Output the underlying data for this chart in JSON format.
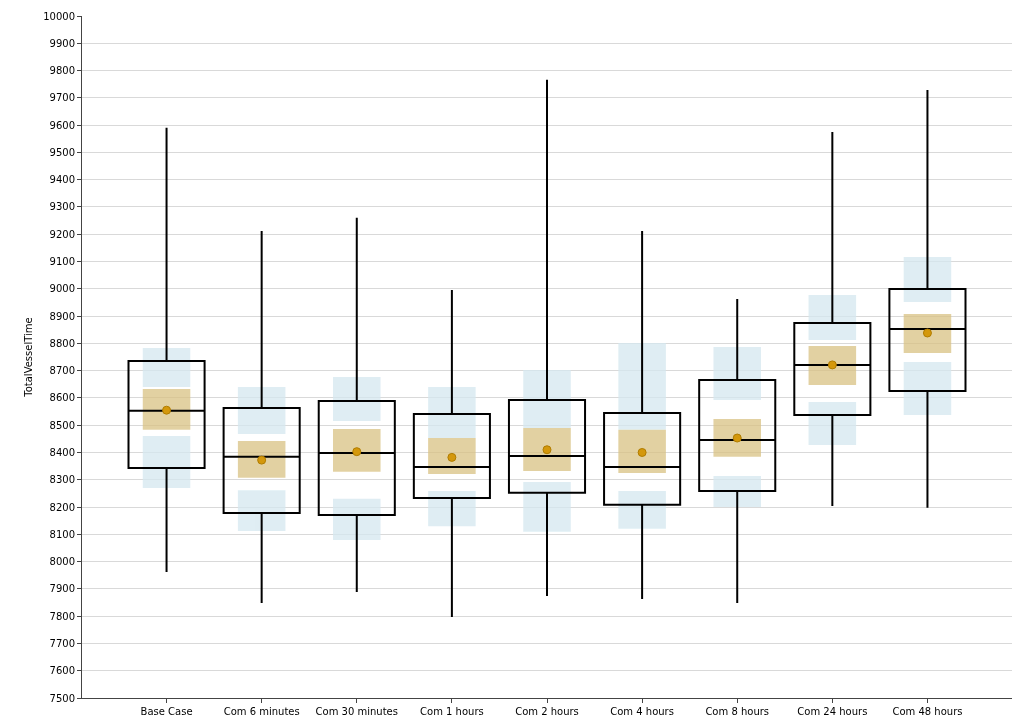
{
  "chart_data": {
    "type": "box",
    "ylabel": "TotalVesselTime",
    "categories": [
      "Base Case",
      "Com 6 minutes",
      "Com 30 minutes",
      "Com 1 hours",
      "Com 2 hours",
      "Com 4 hours",
      "Com 8 hours",
      "Com 24 hours",
      "Com 48 hours"
    ],
    "ylim": [
      7500,
      10000
    ],
    "yticks": [
      7500,
      7600,
      7700,
      7800,
      7900,
      8000,
      8100,
      8200,
      8300,
      8400,
      8500,
      8600,
      8700,
      8800,
      8900,
      9000,
      9100,
      9200,
      9300,
      9400,
      9500,
      9600,
      9700,
      9800,
      9900,
      10000
    ],
    "grid": "y",
    "marker": "circle",
    "series": [
      {
        "color": "#000000",
        "boxes": [
          {
            "low": 7962,
            "q1": 8343,
            "median": 8553,
            "q3": 8735,
            "high": 9590
          },
          {
            "low": 7848,
            "q1": 8178,
            "median": 8384,
            "q3": 8563,
            "high": 9212
          },
          {
            "low": 7889,
            "q1": 8171,
            "median": 8398,
            "q3": 8589,
            "high": 9260
          },
          {
            "low": 7797,
            "q1": 8233,
            "median": 8347,
            "q3": 8541,
            "high": 8996
          },
          {
            "low": 7874,
            "q1": 8252,
            "median": 8387,
            "q3": 8592,
            "high": 9766
          },
          {
            "low": 7863,
            "q1": 8208,
            "median": 8347,
            "q3": 8545,
            "high": 9212
          },
          {
            "low": 7848,
            "q1": 8259,
            "median": 8446,
            "q3": 8666,
            "high": 8963
          },
          {
            "low": 8204,
            "q1": 8537,
            "median": 8721,
            "q3": 8875,
            "high": 9575
          },
          {
            "low": 8197,
            "q1": 8625,
            "median": 8853,
            "q3": 8999,
            "high": 9729
          }
        ]
      },
      {
        "type": "bar",
        "color": "#d5e8f0",
        "base": [
          8640,
          8468,
          8515,
          8453,
          8490,
          8483,
          8592,
          8812,
          8952
        ],
        "values": [
          143,
          172,
          162,
          187,
          212,
          318,
          195,
          165,
          165
        ]
      },
      {
        "type": "bar",
        "color": "#d5e8f0",
        "base": [
          8270,
          8112,
          8079,
          8130,
          8109,
          8120,
          8200,
          8427,
          8537
        ],
        "values": [
          190,
          150,
          151,
          129,
          183,
          139,
          114,
          158,
          195
        ]
      },
      {
        "type": "bar",
        "color": "#d9c283",
        "base": [
          8483,
          8307,
          8329,
          8321,
          8332,
          8325,
          8384,
          8647,
          8765
        ],
        "values": [
          150,
          135,
          157,
          132,
          158,
          158,
          139,
          143,
          143
        ]
      },
      {
        "type": "scatter",
        "color": "#d4980c",
        "x": [
          "Base Case",
          "Com 6 minutes",
          "Com 30 minutes",
          "Com 1 hours",
          "Com 2 hours",
          "Com 4 hours",
          "Com 8 hours",
          "Com 24 hours",
          "Com 48 hours"
        ],
        "values": [
          8555,
          8372,
          8403,
          8382,
          8410,
          8400,
          8453,
          8721,
          8838
        ]
      }
    ]
  }
}
